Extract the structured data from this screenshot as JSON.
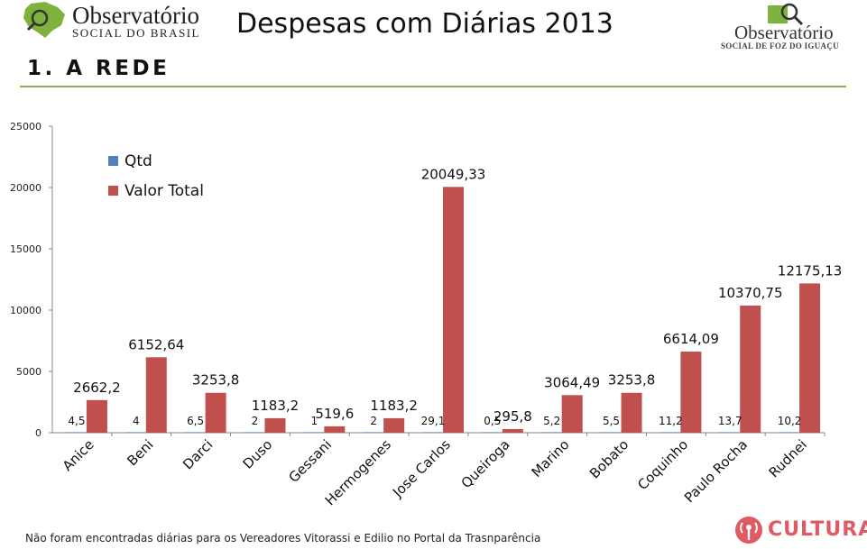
{
  "header": {
    "logo_left_line1": "Observatório",
    "logo_left_line2": "SOCIAL DO BRASIL",
    "title": "Despesas com Diárias 2013",
    "logo_right_line1": "Observatório",
    "logo_right_line2": "SOCIAL DE FOZ DO IGUAÇU"
  },
  "section_heading": "1. A REDE",
  "footnote": "Não foram encontradas diárias para os Vereadores Vitorassi e Edilio no Portal da Trasnparência",
  "watermark": "CULTURA",
  "colors": {
    "qtd": "#4f81bd",
    "valor_total": "#c0504d",
    "rule": "#9aa35e",
    "watermark": "#e05a63"
  },
  "chart_data": {
    "type": "bar",
    "categories": [
      "Anice",
      "Beni",
      "Darci",
      "Duso",
      "Gessani",
      "Hermogenes",
      "Jose Carlos",
      "Queiroga",
      "Marino",
      "Bobato",
      "Coquinho",
      "Paulo Rocha",
      "Rudnei"
    ],
    "series": [
      {
        "name": "Qtd",
        "values": [
          4.5,
          4,
          6.5,
          2,
          1,
          2,
          29.1,
          0.5,
          5.2,
          5.5,
          11.2,
          13.7,
          10.2
        ],
        "labels": [
          "4,5",
          "4",
          "6,5",
          "2",
          "1",
          "2",
          "29,1",
          "0,5",
          "5,2",
          "5,5",
          "11,2",
          "13,7",
          "10,2"
        ]
      },
      {
        "name": "Valor Total",
        "values": [
          2662.2,
          6152.64,
          3253.8,
          1183.2,
          519.6,
          1183.2,
          20049.33,
          295.8,
          3064.49,
          3253.8,
          6614.09,
          10370.75,
          12175.13
        ],
        "labels": [
          "2662,2",
          "6152,64",
          "3253,8",
          "1183,2",
          "519,6",
          "1183,2",
          "20049,33",
          "295,8",
          "3064,49",
          "3253,8",
          "6614,09",
          "10370,75",
          "12175,13"
        ]
      }
    ],
    "yticks": [
      "0",
      "5000",
      "10000",
      "15000",
      "20000",
      "25000"
    ],
    "ylim": [
      0,
      25000
    ],
    "legend_position": "top-left",
    "grid": false
  }
}
